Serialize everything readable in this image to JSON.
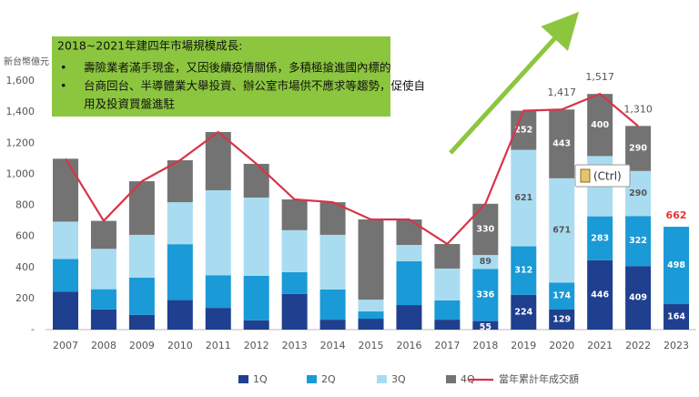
{
  "chart_data": {
    "type": "bar",
    "y_axis_label": "新台幣億元",
    "categories": [
      "2007",
      "2008",
      "2009",
      "2010",
      "2011",
      "2012",
      "2013",
      "2014",
      "2015",
      "2016",
      "2017",
      "2018",
      "2019",
      "2020",
      "2021",
      "2022",
      "2023"
    ],
    "series": [
      {
        "name": "1Q",
        "color": "#1f3f8f",
        "values": [
          245,
          130,
          95,
          190,
          140,
          60,
          229,
          64,
          70,
          158,
          64,
          55,
          224,
          129,
          446,
          409,
          164
        ],
        "value_labels": [
          null,
          null,
          null,
          null,
          null,
          null,
          null,
          null,
          null,
          null,
          null,
          "55",
          "224",
          "129",
          "446",
          "409",
          "164"
        ]
      },
      {
        "name": "2Q",
        "color": "#1a9ad6",
        "values": [
          210,
          130,
          240,
          360,
          210,
          286,
          141,
          194,
          47,
          282,
          124,
          336,
          312,
          174,
          283,
          322,
          498
        ],
        "value_labels": [
          null,
          null,
          null,
          null,
          null,
          null,
          null,
          null,
          null,
          null,
          null,
          "336",
          "312",
          "174",
          "283",
          "322",
          "498"
        ]
      },
      {
        "name": "3Q",
        "color": "#a9dcf1",
        "values": [
          240,
          260,
          275,
          270,
          547,
          504,
          270,
          352,
          76,
          105,
          205,
          89,
          621,
          671,
          388,
          290,
          null
        ],
        "value_labels": [
          null,
          null,
          null,
          null,
          null,
          null,
          null,
          null,
          null,
          null,
          null,
          "89",
          "621",
          "671",
          null,
          "290",
          null
        ]
      },
      {
        "name": "4Q",
        "color": "#737373",
        "values": [
          405,
          180,
          345,
          270,
          375,
          217,
          198,
          210,
          516,
          164,
          158,
          330,
          252,
          443,
          400,
          290,
          null
        ],
        "value_labels": [
          null,
          null,
          null,
          null,
          null,
          null,
          null,
          null,
          null,
          null,
          null,
          "330",
          "252",
          "443",
          "400",
          "290",
          null
        ]
      }
    ],
    "line": {
      "type": "line",
      "name": "當年累計年成交額",
      "color": "#d8344a",
      "values": [
        1100,
        700,
        955,
        1090,
        1272,
        1067,
        838,
        820,
        709,
        709,
        551,
        810,
        1409,
        1417,
        1517,
        1310,
        null
      ],
      "value_labels": [
        null,
        null,
        null,
        null,
        null,
        null,
        null,
        null,
        null,
        null,
        null,
        null,
        null,
        "1,417",
        "1,517",
        "1,310",
        null
      ]
    },
    "annotations": [
      {
        "x": "2023",
        "value": 662,
        "color": "#e8332f"
      }
    ],
    "ylim": [
      0,
      1600
    ],
    "yticks": [
      {
        "value": 0,
        "label": "-"
      },
      200,
      400,
      600,
      800,
      {
        "value": 1000,
        "label": "1,000"
      },
      {
        "value": 1200,
        "label": "1,200"
      },
      {
        "value": 1400,
        "label": "1,400"
      },
      {
        "value": 1600,
        "label": "1,600"
      }
    ],
    "callout": {
      "title": "2018~2021年建四年市場規模成長:",
      "bullets": [
        "壽險業者滿手現金，又因後續疫情關係，多積極搶進國內標的",
        "台商回台、半導體業大舉投資、辦公室市場供不應求等趨勢，促使自",
        "用及投資買盤進駐"
      ]
    },
    "paste_popup": "(Ctrl)"
  }
}
